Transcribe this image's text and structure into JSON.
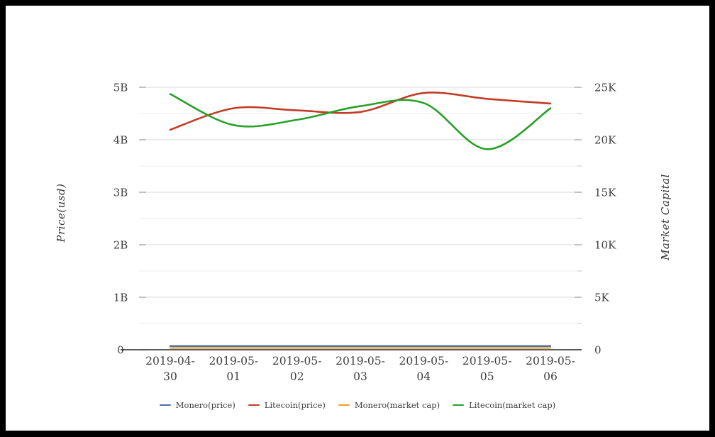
{
  "frame": {
    "color": "#000000"
  },
  "chart_data": {
    "type": "line",
    "x": [
      "2019-04-30",
      "2019-05-01",
      "2019-05-02",
      "2019-05-03",
      "2019-05-04",
      "2019-05-05",
      "2019-05-06"
    ],
    "x_tick_labels_wrapped": [
      [
        "2019-04-",
        "30"
      ],
      [
        "2019-05-",
        "01"
      ],
      [
        "2019-05-",
        "02"
      ],
      [
        "2019-05-",
        "03"
      ],
      [
        "2019-05-",
        "04"
      ],
      [
        "2019-05-",
        "05"
      ],
      [
        "2019-05-",
        "06"
      ]
    ],
    "left_axis": {
      "title": "Price(usd)",
      "unit": "B",
      "range": [
        0,
        5
      ],
      "tick_step": 1,
      "minor_step": 0.5,
      "tick_labels": [
        "0",
        "1B",
        "2B",
        "3B",
        "4B",
        "5B"
      ]
    },
    "right_axis": {
      "title": "Market Capital",
      "unit": "K",
      "range": [
        0,
        25
      ],
      "tick_step": 5,
      "minor_step": 2.5,
      "tick_labels": [
        "0",
        "5K",
        "10K",
        "15K",
        "20K",
        "25K"
      ]
    },
    "grid": true,
    "legend_position": "bottom",
    "series": [
      {
        "name": "Monero(price)",
        "axis": "left",
        "color": "#4572a7",
        "stroke_width": 2.4,
        "values": [
          0.07,
          0.07,
          0.07,
          0.07,
          0.07,
          0.07,
          0.07
        ]
      },
      {
        "name": "Litecoin(price)",
        "axis": "left",
        "color": "#c23c26",
        "stroke_width": 2.6,
        "values": [
          4.19,
          4.6,
          4.56,
          4.53,
          4.89,
          4.78,
          4.69
        ]
      },
      {
        "name": "Monero(market cap)",
        "axis": "right",
        "color": "#f0a22e",
        "stroke_width": 2.2,
        "values": [
          0.17,
          0.17,
          0.17,
          0.17,
          0.17,
          0.17,
          0.17
        ]
      },
      {
        "name": "Litecoin(market cap)",
        "axis": "right",
        "color": "#27a127",
        "stroke_width": 2.6,
        "values": [
          24.35,
          21.4,
          21.9,
          23.2,
          23.5,
          19.1,
          23.0
        ]
      }
    ],
    "colors": {
      "grid_major": "#dadada",
      "grid_minor": "#ececec",
      "axis_line": "#262626",
      "tick_text": "#3f3f3f",
      "tick_stub_major": "#9a9a9a",
      "tick_stub_minor": "#cfcfcf"
    }
  }
}
